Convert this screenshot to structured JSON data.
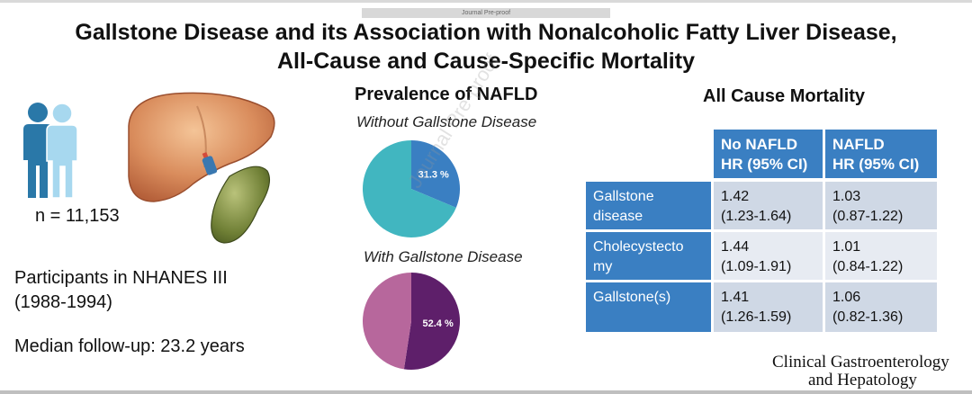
{
  "proof_label": "Journal Pre-proof",
  "title_line1": "Gallstone Disease and its Association with Nonalcoholic Fatty Liver Disease,",
  "title_line2": "All-Cause and Cause-Specific Mortality",
  "left": {
    "n_label": "n = 11,153",
    "participants_line1": "Participants in NHANES III",
    "participants_line2": "(1988-1994)",
    "followup": "Median follow-up: 23.2 years"
  },
  "prevalence": {
    "title": "Prevalence of NAFLD",
    "without_label": "Without Gallstone Disease",
    "with_label": "With Gallstone Disease"
  },
  "watermark": "Journal Pre-proof",
  "chart_data": [
    {
      "type": "pie",
      "title": "Without Gallstone Disease",
      "values": [
        31.3,
        68.7
      ],
      "labels": [
        "31.3 %",
        ""
      ],
      "colors": [
        "#3a7fc2",
        "#41b6c0"
      ]
    },
    {
      "type": "pie",
      "title": "With Gallstone Disease",
      "values": [
        52.4,
        47.6
      ],
      "labels": [
        "52.4 %",
        ""
      ],
      "colors": [
        "#5e1f6a",
        "#b7679c"
      ]
    }
  ],
  "mortality": {
    "title": "All Cause Mortality",
    "col1_line1": "No NAFLD",
    "col1_line2": "HR (95% CI)",
    "col2_line1": "NAFLD",
    "col2_line2": "HR (95% CI)",
    "rows": [
      {
        "label1": "Gallstone",
        "label2": "disease",
        "c1a": "1.42",
        "c1b": "(1.23-1.64)",
        "c2a": "1.03",
        "c2b": "(0.87-1.22)"
      },
      {
        "label1": "Cholecystecto",
        "label2": "my",
        "c1a": "1.44",
        "c1b": "(1.09-1.91)",
        "c2a": "1.01",
        "c2b": "(0.84-1.22)"
      },
      {
        "label1": "Gallstone(s)",
        "label2": "",
        "c1a": "1.41",
        "c1b": "(1.26-1.59)",
        "c2a": "1.06",
        "c2b": "(0.82-1.36)"
      }
    ]
  },
  "journal_line1": "Clinical Gastroenterology",
  "journal_line2": "and Hepatology",
  "colors": {
    "table_header": "#3a7fc2",
    "table_cell": "#cfd8e5",
    "person_dark": "#2a78a8",
    "person_light": "#a7d8ef"
  }
}
